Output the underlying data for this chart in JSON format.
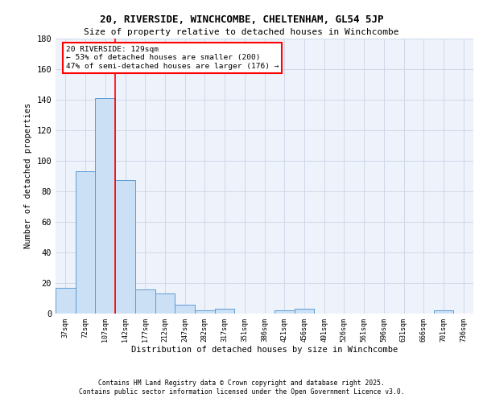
{
  "title1": "20, RIVERSIDE, WINCHCOMBE, CHELTENHAM, GL54 5JP",
  "title2": "Size of property relative to detached houses in Winchcombe",
  "xlabel": "Distribution of detached houses by size in Winchcombe",
  "ylabel": "Number of detached properties",
  "bin_labels": [
    "37sqm",
    "72sqm",
    "107sqm",
    "142sqm",
    "177sqm",
    "212sqm",
    "247sqm",
    "282sqm",
    "317sqm",
    "351sqm",
    "386sqm",
    "421sqm",
    "456sqm",
    "491sqm",
    "526sqm",
    "561sqm",
    "596sqm",
    "631sqm",
    "666sqm",
    "701sqm",
    "736sqm"
  ],
  "bar_values": [
    17,
    93,
    141,
    87,
    16,
    13,
    6,
    2,
    3,
    0,
    0,
    2,
    3,
    0,
    0,
    0,
    0,
    0,
    0,
    2,
    0
  ],
  "bar_color": "#cce0f5",
  "bar_edge_color": "#5b9bd5",
  "grid_color": "#d0d8e8",
  "background_color": "#eef3fb",
  "vline_x_index": 2,
  "annotation_text": "20 RIVERSIDE: 129sqm\n← 53% of detached houses are smaller (200)\n47% of semi-detached houses are larger (176) →",
  "annotation_box_color": "white",
  "annotation_box_edge": "red",
  "footer1": "Contains HM Land Registry data © Crown copyright and database right 2025.",
  "footer2": "Contains public sector information licensed under the Open Government Licence v3.0.",
  "ylim": [
    0,
    180
  ],
  "yticks": [
    0,
    20,
    40,
    60,
    80,
    100,
    120,
    140,
    160,
    180
  ]
}
